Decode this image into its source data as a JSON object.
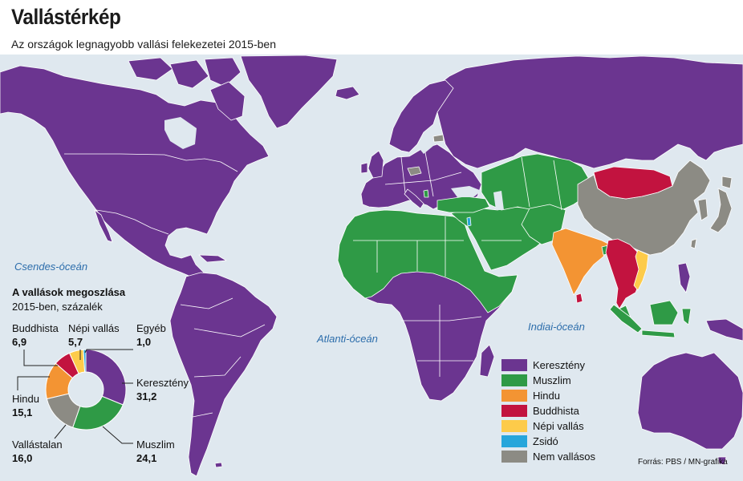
{
  "header": {
    "title": "Vallástérkép",
    "subtitle": "Az országok legnagyobb vallási felekezetei 2015-ben"
  },
  "map": {
    "ocean_labels": [
      "Csendes-óceán",
      "Atlanti-óceán",
      "Indiai-óceán"
    ]
  },
  "legend": {
    "items": [
      {
        "label": "Keresztény",
        "color": "#6b3590"
      },
      {
        "label": "Muszlim",
        "color": "#2f9a46"
      },
      {
        "label": "Hindu",
        "color": "#f39433"
      },
      {
        "label": "Buddhista",
        "color": "#c2133f"
      },
      {
        "label": "Népi vallás",
        "color": "#fdcb4a"
      },
      {
        "label": "Zsidó",
        "color": "#27a6db"
      },
      {
        "label": "Nem vallásos",
        "color": "#8c8b84"
      }
    ]
  },
  "chart_data": {
    "type": "pie",
    "donut": true,
    "title": "A vallások megoszlása",
    "subtitle": "2015-ben, százalék",
    "categories": [
      "Keresztény",
      "Muszlim",
      "Vallástalan",
      "Hindu",
      "Buddhista",
      "Népi vallás",
      "Egyéb"
    ],
    "values": [
      31.2,
      24.1,
      16.0,
      15.1,
      6.9,
      5.7,
      1.0
    ],
    "colors": [
      "#6b3590",
      "#2f9a46",
      "#8c8b84",
      "#f39433",
      "#c2133f",
      "#fdcb4a",
      "#27a6db"
    ]
  },
  "footer": {
    "source": "Forrás: PBS / MN-grafika"
  }
}
